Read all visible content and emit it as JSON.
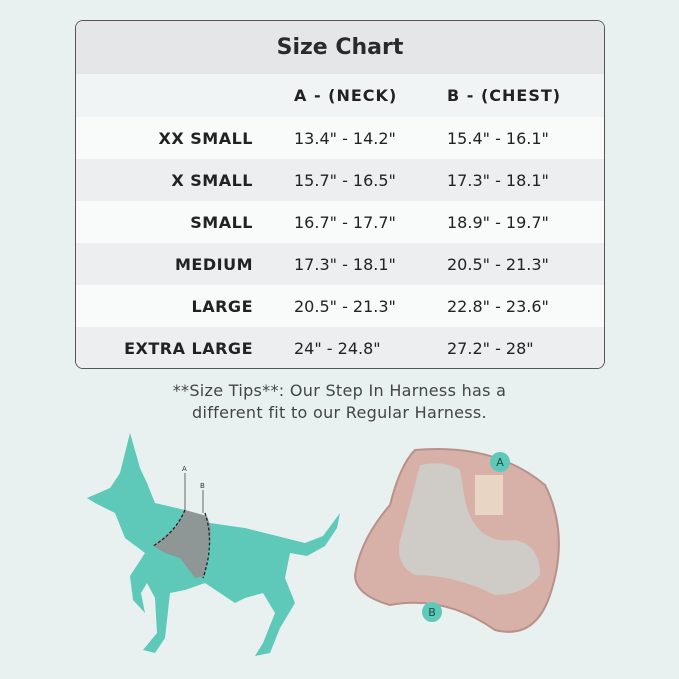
{
  "size_chart": {
    "title": "Size Chart",
    "columns": [
      "",
      "A - (NECK)",
      "B - (CHEST)"
    ],
    "rows": [
      {
        "size": "XX SMALL",
        "neck": "13.4\" - 14.2\"",
        "chest": "15.4\" - 16.1\""
      },
      {
        "size": "X SMALL",
        "neck": "15.7\" - 16.5\"",
        "chest": "17.3\" - 18.1\""
      },
      {
        "size": "SMALL",
        "neck": "16.7\" - 17.7\"",
        "chest": "18.9\" - 19.7\""
      },
      {
        "size": "MEDIUM",
        "neck": "17.3\" - 18.1\"",
        "chest": "20.5\" - 21.3\""
      },
      {
        "size": "LARGE",
        "neck": "20.5\" - 21.3\"",
        "chest": "22.8\" - 23.6\""
      },
      {
        "size": "EXTRA LARGE",
        "neck": "24\" - 24.8\"",
        "chest": "27.2\" - 28\""
      }
    ]
  },
  "tips": {
    "line1": "**Size Tips**: Our Step In Harness has a",
    "line2": "different fit to our Regular Harness."
  },
  "illustration": {
    "dog_label_a": "A",
    "dog_label_b": "B",
    "harness_label_a": "A",
    "harness_label_b": "B",
    "dog_color": "#5ec9b8",
    "harness_color": "#d9b3aa",
    "badge_color": "#5ec9b8"
  }
}
